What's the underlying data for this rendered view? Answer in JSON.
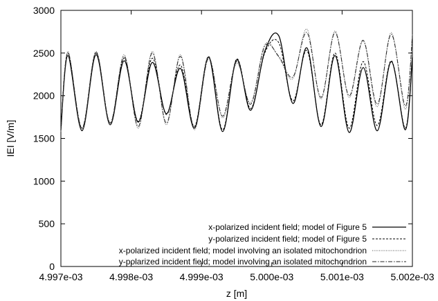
{
  "chart_data": {
    "type": "line",
    "title": "",
    "xlabel": "z [m]",
    "ylabel": "IEI [V/m]",
    "xlim": [
      0.004997,
      0.005002
    ],
    "ylim": [
      0,
      3000
    ],
    "x_ticks": [
      0.004997,
      0.004998,
      0.004999,
      0.005,
      0.005001,
      0.005002
    ],
    "x_tick_labels": [
      "4.997e-03",
      "4.998e-03",
      "4.999e-03",
      "5.000e-03",
      "5.001e-03",
      "5.002e-03"
    ],
    "y_ticks": [
      0,
      500,
      1000,
      1500,
      2000,
      2500,
      3000
    ],
    "y_tick_labels": [
      "0",
      "500",
      "1000",
      "1500",
      "2000",
      "2500",
      "3000"
    ],
    "grid": false,
    "legend_position": "bottom-right",
    "x": [
      0.004997,
      0.0049971,
      0.0049973,
      0.0049975,
      0.0049977,
      0.0049979,
      0.0049981,
      0.0049983,
      0.0049985,
      0.0049987,
      0.0049989,
      0.0049991,
      0.0049993,
      0.0049995,
      0.0049997,
      0.0049999,
      0.0050001,
      0.0050003,
      0.0050005,
      0.0050007,
      0.0050009,
      0.0050011,
      0.0050013,
      0.0050015,
      0.0050017,
      0.0050019,
      0.005002
    ],
    "series": [
      {
        "name": "x-polarized incident field; model of Figure 5",
        "style": "solid",
        "values": [
          1600,
          2470,
          1590,
          2480,
          1660,
          2410,
          1690,
          2390,
          1790,
          2320,
          1620,
          2450,
          1580,
          2420,
          1830,
          2520,
          2700,
          1910,
          2560,
          1640,
          2470,
          1570,
          2330,
          1590,
          2400,
          1600,
          2450
        ]
      },
      {
        "name": "y-polarized incident field; model of Figure 5",
        "style": "dashed",
        "values": [
          1620,
          2500,
          1620,
          2510,
          1680,
          2440,
          1700,
          2440,
          1780,
          2360,
          1640,
          2460,
          1600,
          2430,
          1850,
          2500,
          2620,
          1940,
          2530,
          1660,
          2500,
          1620,
          2400,
          1650,
          2410,
          1620,
          2480
        ]
      },
      {
        "name": "x-polarized incident field; model involving an isolated mitochondrion",
        "style": "dotted",
        "values": [
          1580,
          2520,
          1600,
          2520,
          1660,
          2480,
          1620,
          2520,
          1660,
          2480,
          1600,
          2460,
          1740,
          2380,
          1920,
          2600,
          2450,
          2200,
          2780,
          1960,
          2760,
          1980,
          2640,
          1870,
          2740,
          1840,
          2720
        ]
      },
      {
        "name": "y-polarized incident field; model involving an isolated mitochondrion",
        "style": "dashdot",
        "values": [
          1600,
          2500,
          1620,
          2500,
          1680,
          2460,
          1640,
          2500,
          1680,
          2460,
          1620,
          2440,
          1760,
          2400,
          1900,
          2580,
          2460,
          2220,
          2740,
          1980,
          2740,
          2000,
          2650,
          1900,
          2720,
          1880,
          2700
        ]
      }
    ]
  }
}
